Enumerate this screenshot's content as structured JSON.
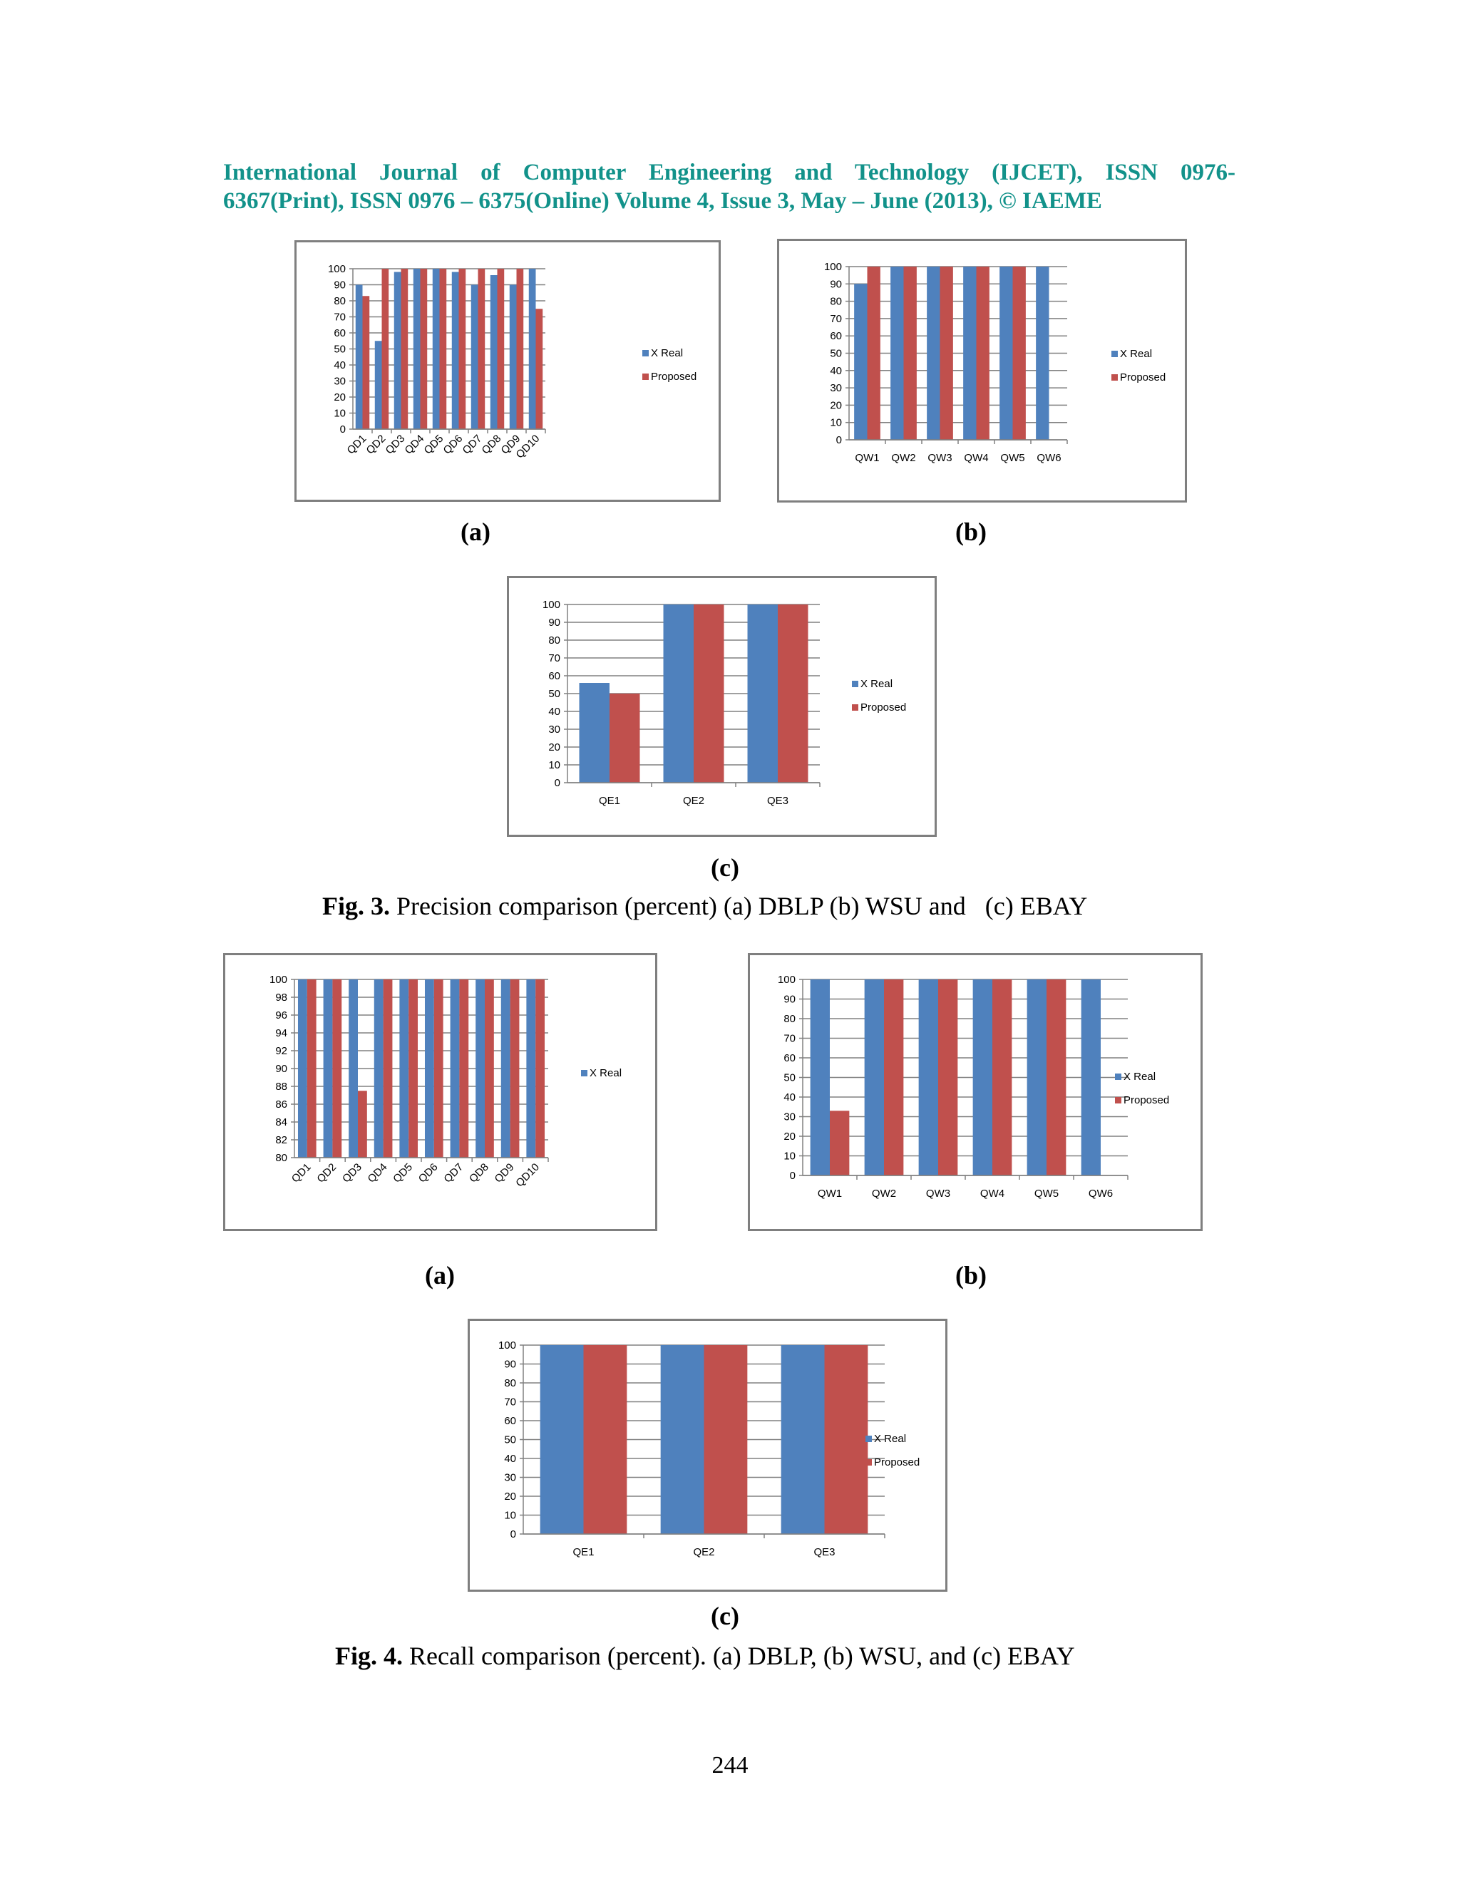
{
  "header": {
    "line1": "International Journal of Computer Engineering and Technology (IJCET), ISSN 0976-",
    "line2": "6367(Print), ISSN 0976 – 6375(Online) Volume 4, Issue 3, May – June (2013), © IAEME"
  },
  "colors": {
    "x_real": "#4f81bd",
    "proposed": "#c0504d",
    "frame": "#7f7f7f",
    "header": "#12928a"
  },
  "sublabels": {
    "a": "(a)",
    "b": "(b)",
    "c": "(c)"
  },
  "fig3_caption": {
    "label": "Fig. 3.",
    "text": " Precision comparison (percent) (a) DBLP (b) WSU and   (c) EBAY"
  },
  "fig4_caption": {
    "label": "Fig. 4.",
    "text": " Recall comparison (percent). (a) DBLP, (b) WSU, and (c) EBAY"
  },
  "page_number": "244",
  "chart_data": [
    {
      "id": "fig3a",
      "type": "bar",
      "categories": [
        "QD1",
        "QD2",
        "QD3",
        "QD4",
        "QD5",
        "QD6",
        "QD7",
        "QD8",
        "QD9",
        "QD10"
      ],
      "series": [
        {
          "name": "X Real",
          "values": [
            90,
            55,
            98,
            100,
            100,
            98,
            90,
            96,
            90,
            100
          ]
        },
        {
          "name": "Proposed",
          "values": [
            83,
            100,
            100,
            100,
            100,
            100,
            100,
            100,
            100,
            75
          ]
        }
      ],
      "ylim": [
        0,
        100
      ],
      "ytick_step": 10,
      "rotated_labels": true,
      "legend": "right"
    },
    {
      "id": "fig3b",
      "type": "bar",
      "categories": [
        "QW1",
        "QW2",
        "QW3",
        "QW4",
        "QW5",
        "QW6"
      ],
      "series": [
        {
          "name": "X Real",
          "values": [
            90,
            100,
            100,
            100,
            100,
            100
          ]
        },
        {
          "name": "Proposed",
          "values": [
            100,
            100,
            100,
            100,
            100,
            null
          ]
        }
      ],
      "ylim": [
        0,
        100
      ],
      "ytick_step": 10,
      "rotated_labels": false,
      "legend": "right"
    },
    {
      "id": "fig3c",
      "type": "bar",
      "categories": [
        "QE1",
        "QE2",
        "QE3"
      ],
      "series": [
        {
          "name": "X Real",
          "values": [
            56,
            100,
            100
          ]
        },
        {
          "name": "Proposed",
          "values": [
            50,
            100,
            100
          ]
        }
      ],
      "ylim": [
        0,
        100
      ],
      "ytick_step": 10,
      "rotated_labels": false,
      "legend": "right"
    },
    {
      "id": "fig4a",
      "type": "bar",
      "categories": [
        "QD1",
        "QD2",
        "QD3",
        "QD4",
        "QD5",
        "QD6",
        "QD7",
        "QD8",
        "QD9",
        "QD10"
      ],
      "series": [
        {
          "name": "X Real",
          "values": [
            100,
            100,
            100,
            100,
            100,
            100,
            100,
            100,
            100,
            100
          ]
        },
        {
          "name": "Proposed",
          "values": [
            100,
            100,
            87.5,
            100,
            100,
            100,
            100,
            100,
            100,
            100
          ]
        }
      ],
      "legend_series": [
        "X Real"
      ],
      "ylim": [
        80,
        100
      ],
      "ytick_step": 2,
      "rotated_labels": true,
      "legend": "right"
    },
    {
      "id": "fig4b",
      "type": "bar",
      "categories": [
        "QW1",
        "QW2",
        "QW3",
        "QW4",
        "QW5",
        "QW6"
      ],
      "series": [
        {
          "name": "X Real",
          "values": [
            100,
            100,
            100,
            100,
            100,
            100
          ]
        },
        {
          "name": "Proposed",
          "values": [
            33,
            100,
            100,
            100,
            100,
            null
          ]
        }
      ],
      "ylim": [
        0,
        100
      ],
      "ytick_step": 10,
      "rotated_labels": false,
      "legend": "right"
    },
    {
      "id": "fig4c",
      "type": "bar",
      "categories": [
        "QE1",
        "QE2",
        "QE3"
      ],
      "series": [
        {
          "name": "X Real",
          "values": [
            100,
            100,
            100
          ]
        },
        {
          "name": "Proposed",
          "values": [
            100,
            100,
            100
          ]
        }
      ],
      "ylim": [
        0,
        100
      ],
      "ytick_step": 10,
      "rotated_labels": false,
      "legend": "right"
    }
  ]
}
